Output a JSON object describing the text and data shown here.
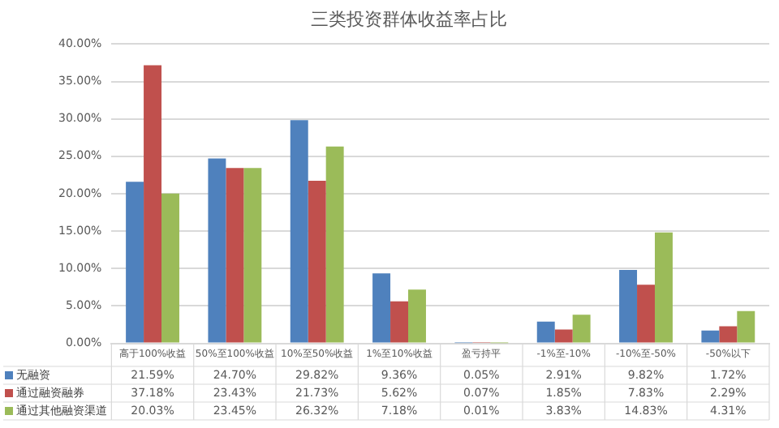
{
  "chart_data": {
    "type": "bar",
    "title": "三类投资群体收益率占比",
    "categories": [
      "高于100%收益",
      "50%至100%收益",
      "10%至50%收益",
      "1%至10%收益",
      "盈亏持平",
      "-1%至-10%",
      "-10%至-50%",
      "-50%以下"
    ],
    "series": [
      {
        "name": "无融资",
        "color": "#4f81bd",
        "values": [
          21.59,
          24.7,
          29.82,
          9.36,
          0.05,
          2.91,
          9.82,
          1.72
        ],
        "value_labels": [
          "21.59%",
          "24.70%",
          "29.82%",
          "9.36%",
          "0.05%",
          "2.91%",
          "9.82%",
          "1.72%"
        ]
      },
      {
        "name": "通过融资融券",
        "color": "#c0504d",
        "values": [
          37.18,
          23.43,
          21.73,
          5.62,
          0.07,
          1.85,
          7.83,
          2.29
        ],
        "value_labels": [
          "37.18%",
          "23.43%",
          "21.73%",
          "5.62%",
          "0.07%",
          "1.85%",
          "7.83%",
          "2.29%"
        ]
      },
      {
        "name": "通过其他融资渠道",
        "color": "#9bbb59",
        "values": [
          20.03,
          23.45,
          26.32,
          7.18,
          0.01,
          3.83,
          14.83,
          4.31
        ],
        "value_labels": [
          "20.03%",
          "23.45%",
          "26.32%",
          "7.18%",
          "0.01%",
          "3.83%",
          "14.83%",
          "4.31%"
        ]
      }
    ],
    "ylim": [
      0,
      40
    ],
    "yticks": [
      {
        "value": 0,
        "label": "0.00%"
      },
      {
        "value": 5,
        "label": "5.00%"
      },
      {
        "value": 10,
        "label": "10.00%"
      },
      {
        "value": 15,
        "label": "15.00%"
      },
      {
        "value": 20,
        "label": "20.00%"
      },
      {
        "value": 25,
        "label": "25.00%"
      },
      {
        "value": 30,
        "label": "30.00%"
      },
      {
        "value": 35,
        "label": "35.00%"
      },
      {
        "value": 40,
        "label": "40.00%"
      }
    ],
    "grid": "y",
    "legend": "bottom"
  }
}
